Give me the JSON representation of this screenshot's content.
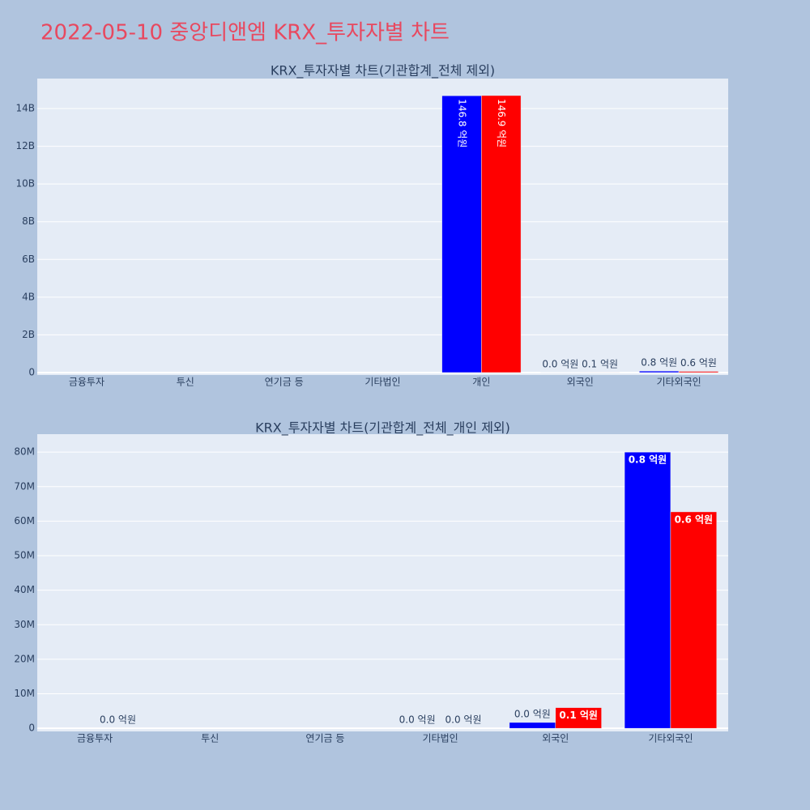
{
  "title": "2022-05-10 중앙디앤엠 KRX_투자자별 차트",
  "chart_data": [
    {
      "type": "bar",
      "title": "KRX_투자자별 차트(기관합계_전체 제외)",
      "categories": [
        "금융투자",
        "투신",
        "연기금 등",
        "기타법인",
        "개인",
        "외국인",
        "기타외국인"
      ],
      "series": [
        {
          "color": "#0000ff",
          "values": [
            null,
            null,
            null,
            null,
            14680000000,
            1700000,
            80000000
          ],
          "value_labels": [
            null,
            null,
            null,
            null,
            "146.8 억원",
            "0.0 억원",
            "0.8 억원"
          ]
        },
        {
          "color": "#ff0000",
          "values": [
            null,
            null,
            null,
            null,
            14690000000,
            6000000,
            62700000
          ],
          "value_labels": [
            null,
            null,
            null,
            null,
            "146.9 억원",
            "0.1 억원",
            "0.6 억원"
          ]
        }
      ],
      "ylim": [
        -130000000,
        15590000000
      ],
      "yticks": [
        0,
        {
          "value": 2000000000,
          "label": "2B"
        },
        {
          "value": 4000000000,
          "label": "4B"
        },
        {
          "value": 6000000000,
          "label": "6B"
        },
        {
          "value": 8000000000,
          "label": "8B"
        },
        {
          "value": 10000000000,
          "label": "10B"
        },
        {
          "value": 12000000000,
          "label": "12B"
        },
        {
          "value": 14000000000,
          "label": "14B"
        }
      ],
      "grid": true
    },
    {
      "type": "bar",
      "title": "KRX_투자자별 차트(기관합계_전체_개인 제외)",
      "categories": [
        "금융투자",
        "투신",
        "연기금 등",
        "기타법인",
        "외국인",
        "기타외국인"
      ],
      "series": [
        {
          "color": "#0000ff",
          "values": [
            null,
            null,
            null,
            0,
            1700000,
            80000000
          ],
          "value_labels": [
            null,
            null,
            null,
            "0.0 억원",
            "0.0 억원",
            "0.8 억원"
          ]
        },
        {
          "color": "#ff0000",
          "values": [
            0,
            null,
            null,
            0,
            6000000,
            62700000
          ],
          "value_labels": [
            "0.0 억원",
            null,
            null,
            "0.0 억원",
            "0.1 억원",
            "0.6 억원"
          ]
        }
      ],
      "ylim": [
        -900000,
        85200000
      ],
      "yticks": [
        0,
        {
          "value": 10000000,
          "label": "10M"
        },
        {
          "value": 20000000,
          "label": "20M"
        },
        {
          "value": 30000000,
          "label": "30M"
        },
        {
          "value": 40000000,
          "label": "40M"
        },
        {
          "value": 50000000,
          "label": "50M"
        },
        {
          "value": 60000000,
          "label": "60M"
        },
        {
          "value": 70000000,
          "label": "70M"
        },
        {
          "value": 80000000,
          "label": "80M"
        }
      ],
      "grid": true
    }
  ]
}
